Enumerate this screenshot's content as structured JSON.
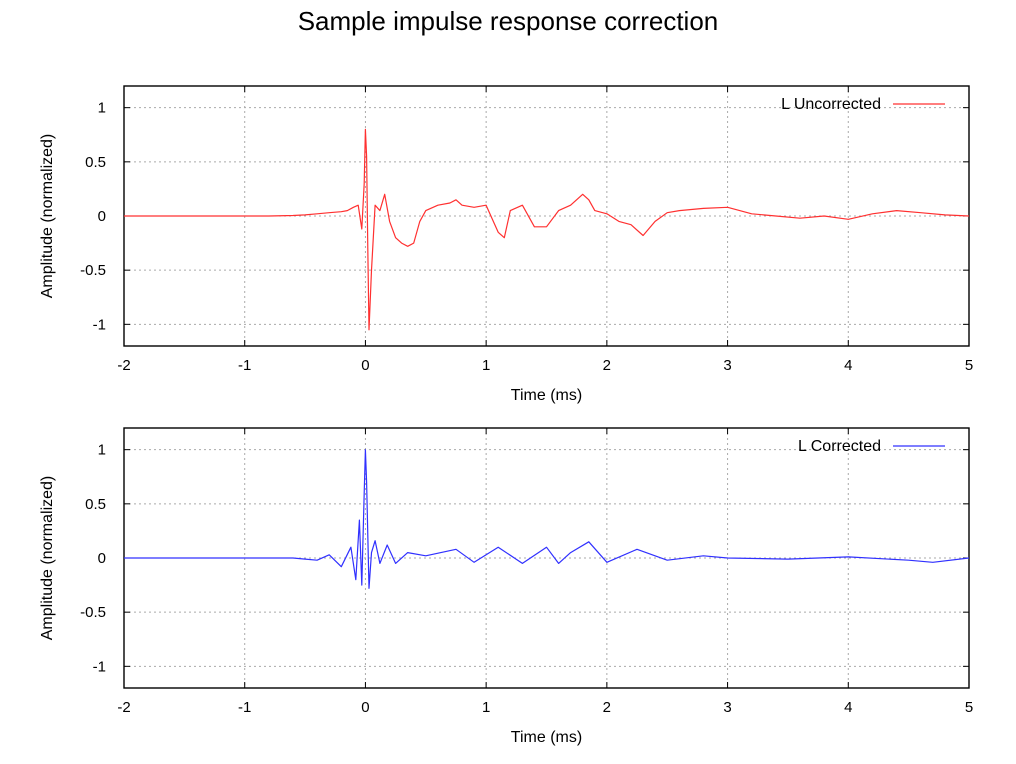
{
  "figure": {
    "title": "Sample impulse response correction"
  },
  "chart_data": [
    {
      "type": "line",
      "title": "Sample impulse response correction",
      "xlabel": "Time (ms)",
      "ylabel": "Amplitude (normalized)",
      "xlim": [
        -2,
        5
      ],
      "ylim": [
        -1.2,
        1.2
      ],
      "xticks": [
        -2,
        -1,
        0,
        1,
        2,
        3,
        4,
        5
      ],
      "yticks": [
        -1,
        -0.5,
        0,
        0.5,
        1
      ],
      "grid": true,
      "legend_position": "top-right",
      "series": [
        {
          "name": "L Uncorrected",
          "color": "#ff3030",
          "x": [
            -2,
            -1.5,
            -1,
            -0.8,
            -0.6,
            -0.5,
            -0.4,
            -0.3,
            -0.2,
            -0.15,
            -0.1,
            -0.06,
            -0.03,
            -0.01,
            0.0,
            0.01,
            0.02,
            0.03,
            0.05,
            0.08,
            0.12,
            0.16,
            0.2,
            0.25,
            0.3,
            0.35,
            0.4,
            0.45,
            0.5,
            0.6,
            0.7,
            0.75,
            0.8,
            0.9,
            1.0,
            1.1,
            1.15,
            1.2,
            1.3,
            1.4,
            1.5,
            1.6,
            1.7,
            1.8,
            1.85,
            1.9,
            2.0,
            2.1,
            2.2,
            2.3,
            2.4,
            2.5,
            2.6,
            2.8,
            3.0,
            3.2,
            3.4,
            3.6,
            3.8,
            4.0,
            4.2,
            4.4,
            4.6,
            4.8,
            5.0
          ],
          "y": [
            0,
            0,
            0,
            0,
            0.005,
            0.01,
            0.02,
            0.03,
            0.04,
            0.05,
            0.08,
            0.1,
            -0.12,
            0.3,
            0.8,
            0.55,
            -0.3,
            -1.05,
            -0.5,
            0.1,
            0.05,
            0.2,
            -0.05,
            -0.2,
            -0.25,
            -0.28,
            -0.25,
            -0.05,
            0.05,
            0.1,
            0.12,
            0.15,
            0.1,
            0.08,
            0.1,
            -0.15,
            -0.2,
            0.05,
            0.1,
            -0.1,
            -0.1,
            0.05,
            0.1,
            0.2,
            0.15,
            0.05,
            0.02,
            -0.05,
            -0.08,
            -0.18,
            -0.05,
            0.03,
            0.05,
            0.07,
            0.08,
            0.02,
            0.0,
            -0.02,
            0.0,
            -0.03,
            0.02,
            0.05,
            0.03,
            0.01,
            0.0
          ]
        }
      ]
    },
    {
      "type": "line",
      "title": "",
      "xlabel": "Time (ms)",
      "ylabel": "Amplitude (normalized)",
      "xlim": [
        -2,
        5
      ],
      "ylim": [
        -1.2,
        1.2
      ],
      "xticks": [
        -2,
        -1,
        0,
        1,
        2,
        3,
        4,
        5
      ],
      "yticks": [
        -1,
        -0.5,
        0,
        0.5,
        1
      ],
      "grid": true,
      "legend_position": "top-right",
      "series": [
        {
          "name": "L Corrected",
          "color": "#3030ff",
          "x": [
            -2,
            -1.5,
            -1,
            -0.8,
            -0.6,
            -0.5,
            -0.4,
            -0.3,
            -0.2,
            -0.12,
            -0.08,
            -0.05,
            -0.03,
            -0.01,
            0.0,
            0.01,
            0.03,
            0.05,
            0.08,
            0.12,
            0.18,
            0.25,
            0.35,
            0.5,
            0.75,
            0.9,
            1.1,
            1.3,
            1.5,
            1.6,
            1.7,
            1.85,
            2.0,
            2.25,
            2.5,
            2.8,
            3.0,
            3.5,
            4.0,
            4.5,
            4.7,
            5.0
          ],
          "y": [
            0,
            0,
            0,
            0,
            0,
            -0.01,
            -0.02,
            0.03,
            -0.08,
            0.1,
            -0.2,
            0.35,
            -0.25,
            0.6,
            1.0,
            0.7,
            -0.28,
            0.05,
            0.16,
            -0.05,
            0.12,
            -0.05,
            0.05,
            0.02,
            0.08,
            -0.04,
            0.1,
            -0.05,
            0.1,
            -0.05,
            0.05,
            0.15,
            -0.04,
            0.08,
            -0.02,
            0.02,
            0.0,
            -0.01,
            0.01,
            -0.02,
            -0.04,
            0.0
          ]
        }
      ]
    }
  ]
}
